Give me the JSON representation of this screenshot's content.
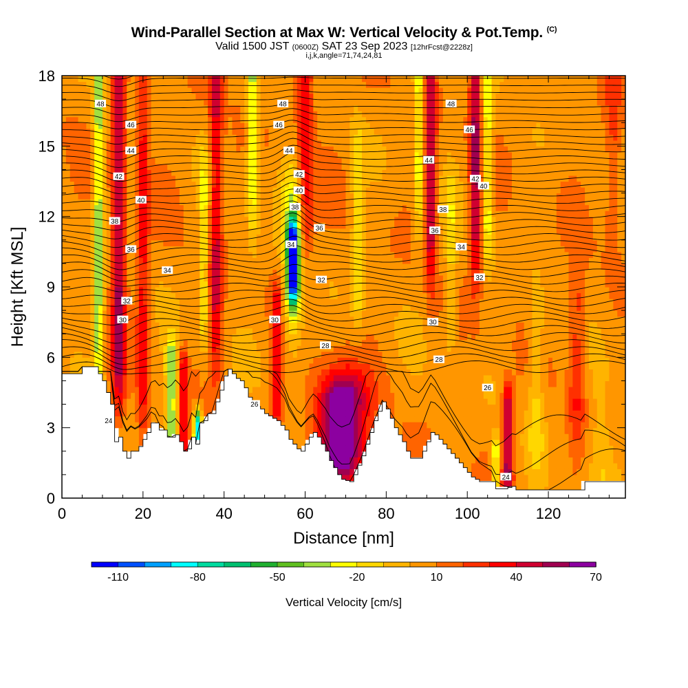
{
  "header": {
    "title_main": "Wind-Parallel Section at Max W: Vertical Velocity & Pot.Temp.",
    "title_mark": "(C)",
    "valid_prefix": "Valid 1500 JST",
    "valid_z": "(0600Z)",
    "valid_date": "SAT 23 Sep 2023",
    "valid_fcst": "[12hrFcst@2228z]",
    "indices": "i,j,k,angle=71,74,24,81"
  },
  "chart_data": {
    "type": "heatmap",
    "xlabel": "Distance [nm]",
    "ylabel": "Height [Kft MSL]",
    "xlim": [
      0,
      139
    ],
    "ylim": [
      0,
      18
    ],
    "x_ticks": [
      0,
      20,
      40,
      60,
      80,
      100,
      120
    ],
    "y_ticks": [
      0,
      3,
      6,
      9,
      12,
      15,
      18
    ],
    "grid": false,
    "colorbar": {
      "label": "Vertical Velocity [cm/s]",
      "tick_labels": [
        "-110",
        "-80",
        "-50",
        "-20",
        "10",
        "40",
        "70"
      ],
      "tick_values": [
        -110,
        -80,
        -50,
        -20,
        10,
        40,
        70
      ],
      "colors": [
        "#0000ff",
        "#0050ff",
        "#00a0ff",
        "#00ffff",
        "#00dca0",
        "#00c070",
        "#20b030",
        "#60c020",
        "#a0e040",
        "#ffff00",
        "#ffd700",
        "#ffb400",
        "#ff9600",
        "#ff6400",
        "#ff3000",
        "#ff0000",
        "#d00030",
        "#a00050",
        "#8c00a0"
      ]
    },
    "theta_contour_labels": [
      {
        "x": 9.5,
        "y": 16.8,
        "label": "48"
      },
      {
        "x": 17,
        "y": 15.9,
        "label": "46"
      },
      {
        "x": 17,
        "y": 14.8,
        "label": "44"
      },
      {
        "x": 14,
        "y": 13.7,
        "label": "42"
      },
      {
        "x": 19.5,
        "y": 12.7,
        "label": "40"
      },
      {
        "x": 13,
        "y": 11.8,
        "label": "38"
      },
      {
        "x": 17,
        "y": 10.6,
        "label": "36"
      },
      {
        "x": 26,
        "y": 9.7,
        "label": "34"
      },
      {
        "x": 16,
        "y": 8.4,
        "label": "32"
      },
      {
        "x": 15,
        "y": 7.6,
        "label": "30"
      },
      {
        "x": 11.5,
        "y": 3.3,
        "label": "24"
      },
      {
        "x": 47.5,
        "y": 4,
        "label": "26"
      },
      {
        "x": 54.5,
        "y": 16.8,
        "label": "48"
      },
      {
        "x": 53.5,
        "y": 15.9,
        "label": "46"
      },
      {
        "x": 56,
        "y": 14.8,
        "label": "44"
      },
      {
        "x": 58.5,
        "y": 13.8,
        "label": "42"
      },
      {
        "x": 58.5,
        "y": 13.1,
        "label": "40"
      },
      {
        "x": 57.5,
        "y": 12.4,
        "label": "38"
      },
      {
        "x": 63.5,
        "y": 11.5,
        "label": "36"
      },
      {
        "x": 56.5,
        "y": 10.8,
        "label": "34"
      },
      {
        "x": 64,
        "y": 9.3,
        "label": "32"
      },
      {
        "x": 52.5,
        "y": 7.6,
        "label": "30"
      },
      {
        "x": 65,
        "y": 6.5,
        "label": "28"
      },
      {
        "x": 96,
        "y": 16.8,
        "label": "48"
      },
      {
        "x": 100.5,
        "y": 15.7,
        "label": "46"
      },
      {
        "x": 90.5,
        "y": 14.4,
        "label": "44"
      },
      {
        "x": 102,
        "y": 13.6,
        "label": "42"
      },
      {
        "x": 104,
        "y": 13.3,
        "label": "40"
      },
      {
        "x": 94,
        "y": 12.3,
        "label": "38"
      },
      {
        "x": 92,
        "y": 11.4,
        "label": "36"
      },
      {
        "x": 98.5,
        "y": 10.7,
        "label": "34"
      },
      {
        "x": 103,
        "y": 9.4,
        "label": "32"
      },
      {
        "x": 91.5,
        "y": 7.5,
        "label": "30"
      },
      {
        "x": 93,
        "y": 5.9,
        "label": "28"
      },
      {
        "x": 105,
        "y": 4.7,
        "label": "26"
      },
      {
        "x": 109.5,
        "y": 0.9,
        "label": "24"
      }
    ],
    "theta_min_labeled": 24,
    "theta_max_labeled": 48
  }
}
